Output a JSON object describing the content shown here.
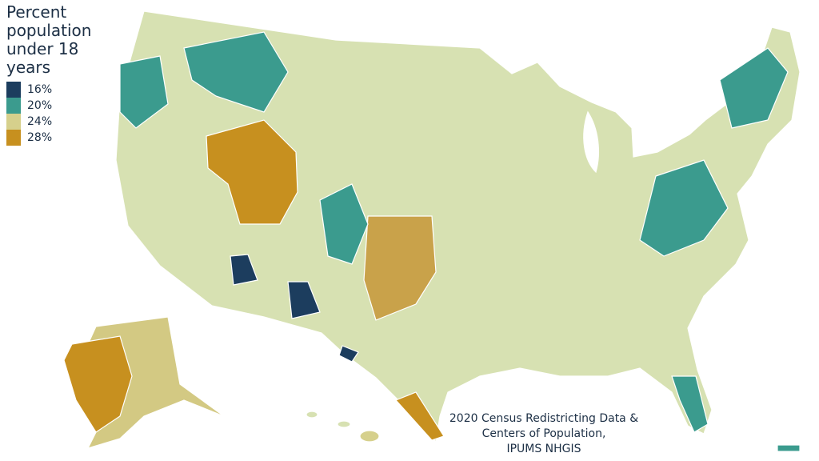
{
  "title": "Percent population under 18 years",
  "legend": [
    {
      "value": 16,
      "label": "16%",
      "color": "#1c3d5e"
    },
    {
      "value": 20,
      "label": "20%",
      "color": "#3b9b8e"
    },
    {
      "value": 24,
      "label": "24%",
      "color": "#d6d08c"
    },
    {
      "value": 28,
      "label": "28%",
      "color": "#c7901f"
    }
  ],
  "source": [
    "2020 Census Redistricting Data &",
    "Centers of Population,",
    "IPUMS NHGIS"
  ]
}
